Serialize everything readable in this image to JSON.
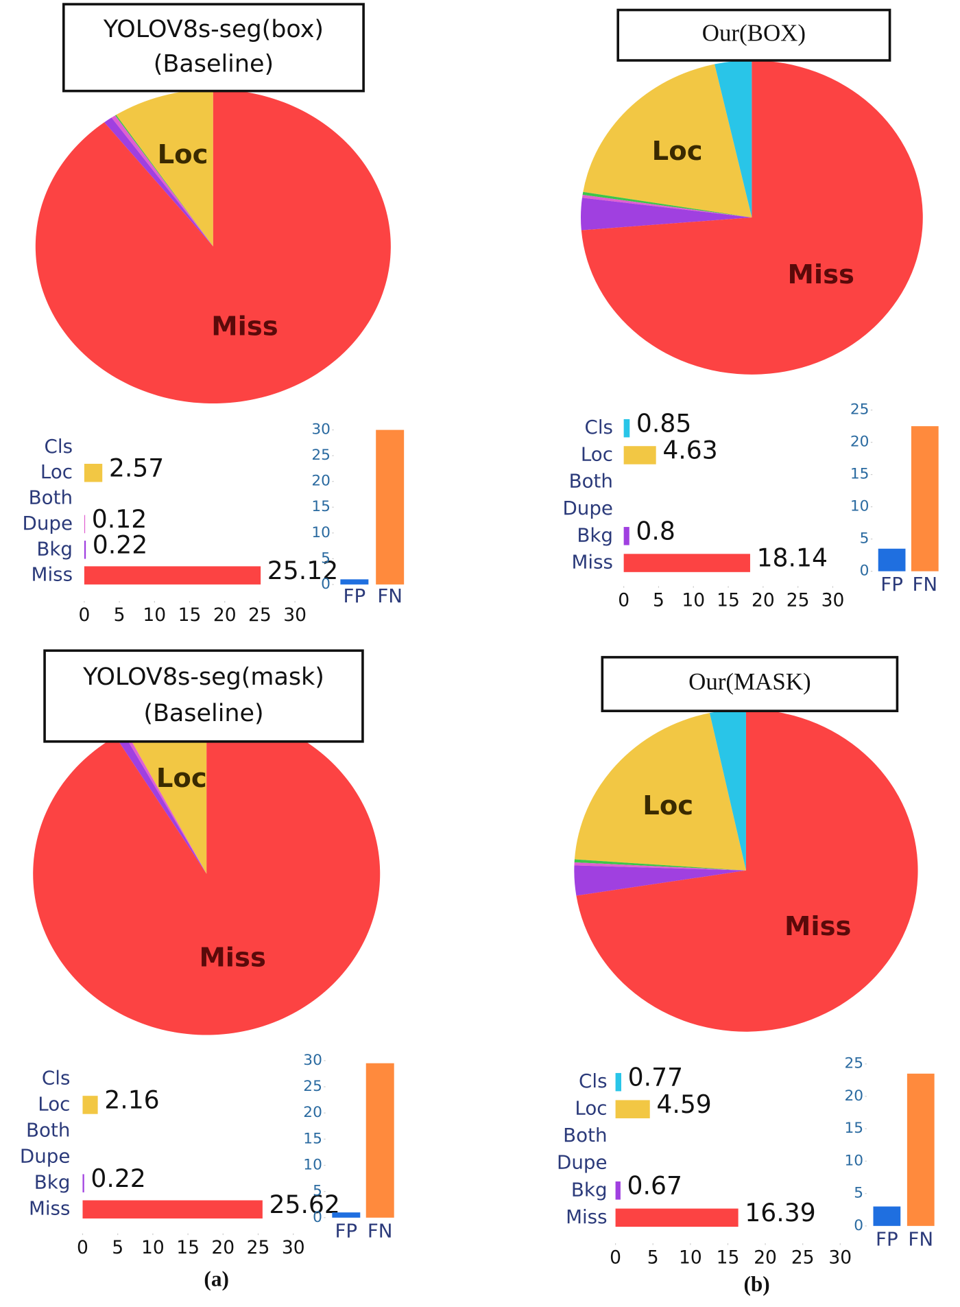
{
  "chart_data": [
    {
      "type": "pie",
      "title": "YOLOV8s-seg(box)",
      "subtitle": "(Baseline)",
      "categories": [
        null,
        "Loc",
        null,
        null,
        null,
        "Miss"
      ],
      "values": [
        0,
        9.2,
        0.1,
        0.4,
        0.8,
        89.5
      ],
      "colors": [
        "#29c5e8",
        "#f2c744",
        "#3ec44a",
        "#e060d0",
        "#a040e0",
        "#fc4343"
      ]
    },
    {
      "type": "hbar",
      "categories": [
        "Cls",
        "Loc",
        "Both",
        "Dupe",
        "Bkg",
        "Miss"
      ],
      "values": [
        null,
        2.57,
        null,
        0.12,
        0.22,
        25.12
      ],
      "colors": [
        "#29c5e8",
        "#f2c744",
        "#3ec44a",
        "#e060d0",
        "#a040e0",
        "#fc4343"
      ],
      "xlim": [
        0,
        30
      ],
      "xticks": [
        0,
        5,
        10,
        15,
        20,
        25,
        30
      ]
    },
    {
      "type": "vbar",
      "categories": [
        "FP",
        "FN"
      ],
      "values": [
        1,
        30
      ],
      "colors": [
        "#1f6fe0",
        "#ff8a3d"
      ],
      "ylim": [
        0,
        30
      ],
      "yticks": [
        0,
        5,
        10,
        15,
        20,
        25,
        30
      ]
    },
    {
      "type": "pie",
      "title": "Our(BOX)",
      "categories": [
        null,
        "Loc",
        null,
        null,
        null,
        "Miss"
      ],
      "values": [
        3.5,
        18.9,
        0.3,
        0.3,
        3.3,
        73.7
      ],
      "colors": [
        "#29c5e8",
        "#f2c744",
        "#3ec44a",
        "#e060d0",
        "#a040e0",
        "#fc4343"
      ]
    },
    {
      "type": "hbar",
      "categories": [
        "Cls",
        "Loc",
        "Both",
        "Dupe",
        "Bkg",
        "Miss"
      ],
      "values": [
        0.85,
        4.63,
        null,
        null,
        0.8,
        18.14
      ],
      "colors": [
        "#29c5e8",
        "#f2c744",
        "#3ec44a",
        "#e060d0",
        "#a040e0",
        "#fc4343"
      ],
      "xlim": [
        0,
        30
      ],
      "xticks": [
        0,
        5,
        10,
        15,
        20,
        25,
        30
      ]
    },
    {
      "type": "vbar",
      "categories": [
        "FP",
        "FN"
      ],
      "values": [
        3.5,
        22.5
      ],
      "colors": [
        "#1f6fe0",
        "#ff8a3d"
      ],
      "ylim": [
        0,
        25
      ],
      "yticks": [
        0,
        5,
        10,
        15,
        20,
        25
      ]
    },
    {
      "type": "pie",
      "title": "YOLOV8s-seg(mask)",
      "subtitle": "(Baseline)",
      "categories": [
        null,
        "Loc",
        null,
        null,
        null,
        "Miss"
      ],
      "values": [
        0,
        7.7,
        0,
        0.3,
        0.8,
        91.2
      ],
      "colors": [
        "#29c5e8",
        "#f2c744",
        "#3ec44a",
        "#e060d0",
        "#a040e0",
        "#fc4343"
      ]
    },
    {
      "type": "hbar",
      "categories": [
        "Cls",
        "Loc",
        "Both",
        "Dupe",
        "Bkg",
        "Miss"
      ],
      "values": [
        null,
        2.16,
        null,
        null,
        0.22,
        25.62
      ],
      "colors": [
        "#29c5e8",
        "#f2c744",
        "#3ec44a",
        "#e060d0",
        "#a040e0",
        "#fc4343"
      ],
      "xlim": [
        0,
        30
      ],
      "xticks": [
        0,
        5,
        10,
        15,
        20,
        25,
        30
      ]
    },
    {
      "type": "vbar",
      "categories": [
        "FP",
        "FN"
      ],
      "values": [
        1,
        29.5
      ],
      "colors": [
        "#1f6fe0",
        "#ff8a3d"
      ],
      "ylim": [
        0,
        30
      ],
      "yticks": [
        0,
        5,
        10,
        15,
        20,
        25,
        30
      ]
    },
    {
      "type": "pie",
      "title": "Our(MASK)",
      "categories": [
        null,
        "Loc",
        null,
        null,
        null,
        "Miss"
      ],
      "values": [
        3.4,
        20.5,
        0.3,
        0.3,
        3.0,
        72.5
      ],
      "colors": [
        "#29c5e8",
        "#f2c744",
        "#3ec44a",
        "#e060d0",
        "#a040e0",
        "#fc4343"
      ]
    },
    {
      "type": "hbar",
      "categories": [
        "Cls",
        "Loc",
        "Both",
        "Dupe",
        "Bkg",
        "Miss"
      ],
      "values": [
        0.77,
        4.59,
        null,
        null,
        0.67,
        16.39
      ],
      "colors": [
        "#29c5e8",
        "#f2c744",
        "#3ec44a",
        "#e060d0",
        "#a040e0",
        "#fc4343"
      ],
      "xlim": [
        0,
        30
      ],
      "xticks": [
        0,
        5,
        10,
        15,
        20,
        25,
        30
      ]
    },
    {
      "type": "vbar",
      "categories": [
        "FP",
        "FN"
      ],
      "values": [
        3,
        23.5
      ],
      "colors": [
        "#1f6fe0",
        "#ff8a3d"
      ],
      "ylim": [
        0,
        25
      ],
      "yticks": [
        0,
        5,
        10,
        15,
        20,
        25
      ]
    }
  ],
  "captions": [
    "(a)",
    "(b)"
  ]
}
